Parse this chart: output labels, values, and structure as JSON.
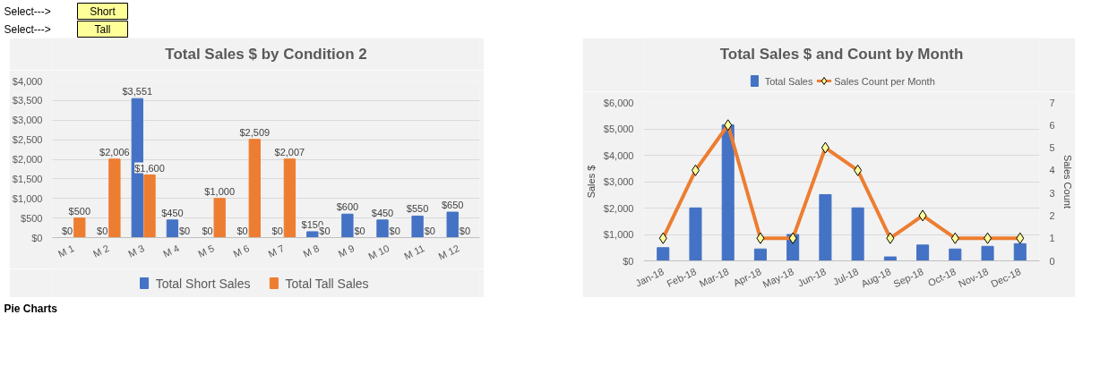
{
  "chart_data": [
    {
      "type": "other",
      "annotations": [
        "Select--->",
        "Short",
        "Select--->",
        "Tall"
      ]
    },
    {
      "type": "bar",
      "title": "Total Sales $ by Condition 2",
      "categories": [
        "M 1",
        "M 2",
        "M 3",
        "M 4",
        "M 5",
        "M 6",
        "M 7",
        "M 8",
        "M 9",
        "M 10",
        "M 11",
        "M 12"
      ],
      "series": [
        {
          "name": "Total Short Sales",
          "color": "#4472c4",
          "values": [
            0,
            0,
            3551,
            450,
            0,
            0,
            0,
            150,
            600,
            450,
            550,
            650
          ],
          "value_labels": [
            "$0",
            "$0",
            "$3,551",
            "$450",
            "$0",
            "$0",
            "$0",
            "$150",
            "$600",
            "$450",
            "$550",
            "$650"
          ]
        },
        {
          "name": "Total Tall Sales",
          "color": "#ed7d31",
          "values": [
            500,
            2006,
            1600,
            0,
            1000,
            2509,
            2007,
            0,
            0,
            0,
            0,
            0
          ],
          "value_labels": [
            "$500",
            "$2,006",
            "$1,600",
            "$0",
            "$1,000",
            "$2,509",
            "$2,007",
            "$0",
            "$0",
            "$0",
            "$0",
            "$0"
          ]
        }
      ],
      "ylim": [
        0,
        4000
      ],
      "yticks": [
        {
          "value": 0,
          "label": "$0"
        },
        {
          "value": 500,
          "label": "$500"
        },
        {
          "value": 1000,
          "label": "$1,000"
        },
        {
          "value": 1500,
          "label": "$1,500"
        },
        {
          "value": 2000,
          "label": "$2,000"
        },
        {
          "value": 2500,
          "label": "$2,500"
        },
        {
          "value": 3000,
          "label": "$3,000"
        },
        {
          "value": 3500,
          "label": "$3,500"
        },
        {
          "value": 4000,
          "label": "$4,000"
        }
      ],
      "grid": "y",
      "legend": "bottom"
    },
    {
      "type": "bar",
      "title": "Total Sales $ and Count by Month",
      "categories": [
        "Jan-18",
        "Feb-18",
        "Mar-18",
        "Apr-18",
        "May-18",
        "Jun-18",
        "Jul-18",
        "Aug-18",
        "Sep-18",
        "Oct-18",
        "Nov-18",
        "Dec-18"
      ],
      "series": [
        {
          "name": "Total Sales",
          "type": "bar",
          "color": "#4472c4",
          "values": [
            500,
            2006,
            5151,
            450,
            1000,
            2509,
            2007,
            150,
            600,
            450,
            550,
            650
          ]
        },
        {
          "name": "Sales Count per Month",
          "type": "line",
          "axis": "y2",
          "marker": "diamond",
          "color": "#ed7d31",
          "values": [
            1,
            4,
            6,
            1,
            1,
            5,
            4,
            1,
            2,
            1,
            1,
            1
          ]
        }
      ],
      "ylabel": "Sales $",
      "y2label": "Sales Count",
      "ylim": [
        0,
        6000
      ],
      "yticks": [
        {
          "value": 0,
          "label": "$0"
        },
        {
          "value": 1000,
          "label": "$1,000"
        },
        {
          "value": 2000,
          "label": "$2,000"
        },
        {
          "value": 3000,
          "label": "$3,000"
        },
        {
          "value": 4000,
          "label": "$4,000"
        },
        {
          "value": 5000,
          "label": "$5,000"
        },
        {
          "value": 6000,
          "label": "$6,000"
        }
      ],
      "y2lim": [
        0,
        7
      ],
      "y2ticks": [
        0,
        1,
        2,
        3,
        4,
        5,
        6,
        7
      ],
      "grid": "y",
      "legend": "top"
    },
    {
      "type": "other",
      "annotations": [
        "Pie Charts"
      ]
    }
  ]
}
